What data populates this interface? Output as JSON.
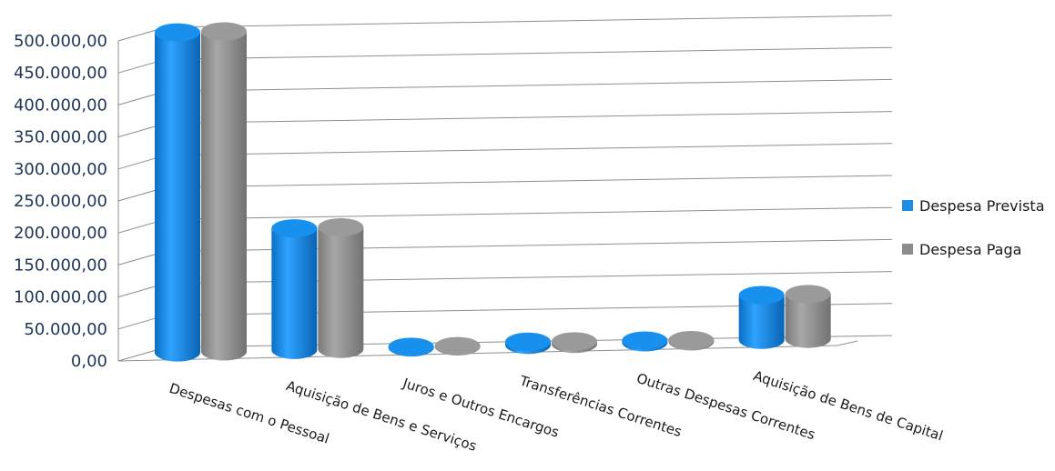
{
  "chart_data": {
    "type": "bar",
    "categories": [
      "Despesas com o Pessoal",
      "Aquisição de Bens e Serviços",
      "Juros e Outros Encargos",
      "Transferências Correntes",
      "Outras Despesas Correntes",
      "Aquisição de Bens de Capital"
    ],
    "series": [
      {
        "name": "Despesa Prevista",
        "values": [
          500000,
          190000,
          1000,
          5000,
          3000,
          70000
        ]
      },
      {
        "name": "Despesa Paga",
        "values": [
          500000,
          190000,
          500,
          4000,
          2000,
          70000
        ]
      }
    ],
    "y_ticks": [
      "0,00",
      "50.000,00",
      "100.000,00",
      "150.000,00",
      "200.000,00",
      "250.000,00",
      "300.000,00",
      "350.000,00",
      "400.000,00",
      "450.000,00",
      "500.000,00"
    ],
    "ylim": [
      0,
      500000
    ],
    "grid": true,
    "legend_position": "right",
    "style": "3d-cylinder",
    "colors": {
      "Despesa Prevista": "#1f8fe6",
      "Despesa Paga": "#8c8c8c"
    }
  }
}
